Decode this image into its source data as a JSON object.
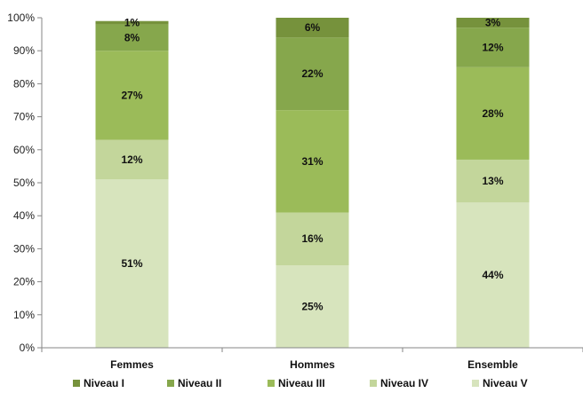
{
  "chart_data": {
    "type": "bar",
    "stacked": true,
    "categories": [
      "Femmes",
      "Hommes",
      "Ensemble"
    ],
    "series": [
      {
        "name": "Niveau V",
        "values": [
          51,
          25,
          44
        ],
        "labels": [
          "51%",
          "25%",
          "44%"
        ],
        "color": "#d7e4bd"
      },
      {
        "name": "Niveau IV",
        "values": [
          12,
          16,
          13
        ],
        "labels": [
          "12%",
          "16%",
          "13%"
        ],
        "color": "#c3d69b"
      },
      {
        "name": "Niveau III",
        "values": [
          27,
          31,
          28
        ],
        "labels": [
          "27%",
          "31%",
          "28%"
        ],
        "color": "#9bbb59"
      },
      {
        "name": "Niveau II",
        "values": [
          8,
          22,
          12
        ],
        "labels": [
          "8%",
          "22%",
          "12%"
        ],
        "color": "#86a74c"
      },
      {
        "name": "Niveau I",
        "values": [
          1,
          6,
          3
        ],
        "labels": [
          "1%",
          "6%",
          "3%"
        ],
        "color": "#76923c"
      }
    ],
    "y_ticks": [
      "0%",
      "10%",
      "20%",
      "30%",
      "40%",
      "50%",
      "60%",
      "70%",
      "80%",
      "90%",
      "100%"
    ],
    "ylim": [
      0,
      100
    ],
    "grid": false,
    "legend": {
      "position": "bottom",
      "order": [
        "Niveau I",
        "Niveau II",
        "Niveau III",
        "Niveau IV",
        "Niveau V"
      ]
    }
  }
}
